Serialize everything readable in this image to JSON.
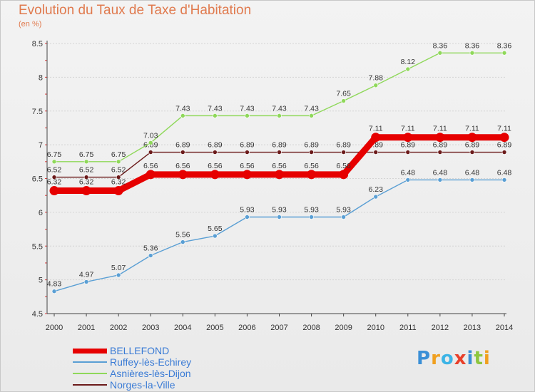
{
  "header": {
    "title": "Evolution du Taux de Taxe d'Habitation",
    "subtitle": "(en %)"
  },
  "logo": {
    "text": "Proxiti",
    "colors": [
      "#3a8fd6",
      "#f0a020",
      "#3cb4e6",
      "#e8402a",
      "#3a8fd6",
      "#8dc63f",
      "#f0a020"
    ]
  },
  "chart_data": {
    "type": "line",
    "title": "Evolution du Taux de Taxe d'Habitation",
    "ylabel": "(en %)",
    "xlabel": "",
    "x": [
      "2000",
      "2001",
      "2002",
      "2003",
      "2004",
      "2005",
      "2006",
      "2007",
      "2008",
      "2009",
      "2010",
      "2011",
      "2012",
      "2013",
      "2014"
    ],
    "ylim": [
      4.5,
      8.5
    ],
    "yticks": [
      "4.5",
      "5",
      "5.5",
      "6",
      "6.5",
      "7",
      "7.5",
      "8",
      "8.5"
    ],
    "grid": true,
    "legend_position": "bottom-left",
    "series": [
      {
        "name": "Norges-la-Ville",
        "color": "#6b1a1a",
        "values": [
          6.52,
          6.52,
          6.52,
          6.89,
          6.89,
          6.89,
          6.89,
          6.89,
          6.89,
          6.89,
          6.89,
          6.89,
          6.89,
          6.89,
          6.89
        ],
        "labels": [
          "6.52",
          "6.52",
          "6.52",
          "6.89",
          "6.89",
          "6.89",
          "6.89",
          "6.89",
          "6.89",
          "6.89",
          "6.89",
          "6.89",
          "6.89",
          "6.89",
          "6.89"
        ]
      },
      {
        "name": "Asnières-lès-Dijon",
        "color": "#8fd85a",
        "values": [
          6.75,
          6.75,
          6.75,
          7.03,
          7.43,
          7.43,
          7.43,
          7.43,
          7.43,
          7.65,
          7.88,
          8.12,
          8.36,
          8.36,
          8.36
        ],
        "labels": [
          "6.75",
          "6.75",
          "6.75",
          "7.03",
          "7.43",
          "7.43",
          "7.43",
          "7.43",
          "7.43",
          "7.65",
          "7.88",
          "8.12",
          "8.36",
          "8.36",
          "8.36"
        ]
      },
      {
        "name": "Ruffey-lès-Echirey",
        "color": "#5a9fd4",
        "values": [
          4.83,
          4.97,
          5.07,
          5.36,
          5.56,
          5.65,
          5.93,
          5.93,
          5.93,
          5.93,
          6.23,
          6.48,
          6.48,
          6.48,
          6.48
        ],
        "labels": [
          "4.83",
          "4.97",
          "5.07",
          "5.36",
          "5.56",
          "5.65",
          "5.93",
          "5.93",
          "5.93",
          "5.93",
          "6.23",
          "6.48",
          "6.48",
          "6.48",
          "6.48"
        ]
      },
      {
        "name": "BELLEFOND",
        "color": "#e60000",
        "values": [
          6.32,
          6.32,
          6.32,
          6.56,
          6.56,
          6.56,
          6.56,
          6.56,
          6.56,
          6.56,
          7.11,
          7.11,
          7.11,
          7.11,
          7.11
        ],
        "labels": [
          "6.32",
          "6.32",
          "6.32",
          "6.56",
          "6.56",
          "6.56",
          "6.56",
          "6.56",
          "6.56",
          "6.56",
          "7.11",
          "7.11",
          "7.11",
          "7.11",
          "7.11"
        ]
      }
    ]
  },
  "legend": [
    {
      "label": "BELLEFOND",
      "color": "#e60000"
    },
    {
      "label": "Ruffey-lès-Echirey",
      "color": "#5a9fd4"
    },
    {
      "label": "Asnières-lès-Dijon",
      "color": "#8fd85a"
    },
    {
      "label": "Norges-la-Ville",
      "color": "#6b1a1a"
    }
  ]
}
